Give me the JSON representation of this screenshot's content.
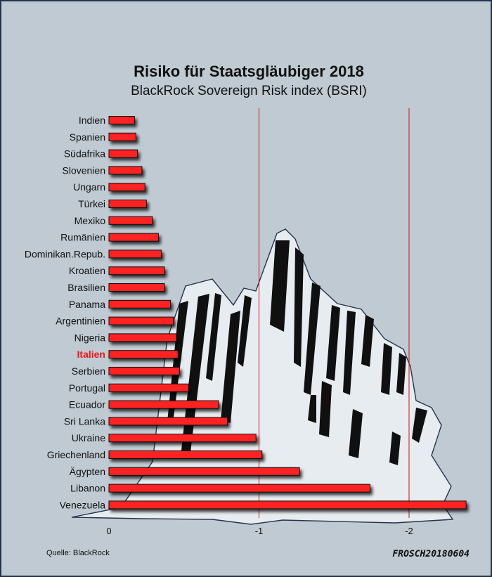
{
  "chart_data": {
    "type": "bar",
    "orientation": "horizontal",
    "title": "Risiko für Staatsgläubiger 2018",
    "subtitle": "BlackRock Sovereign Risk index (BSRI)",
    "xlabel": "",
    "ylabel": "",
    "xlim": [
      0,
      -2.4
    ],
    "xticks": [
      0,
      -1,
      -2
    ],
    "xtick_labels": [
      "0",
      "-1",
      "-2"
    ],
    "grid": "vertical lines at -1 and -2",
    "bar_color": "#ff2020",
    "gridline_color": "#cc1111",
    "highlight_color": "#e81818",
    "highlight": "Italien",
    "categories": [
      "Indien",
      "Spanien",
      "Südafrika",
      "Slovenien",
      "Ungarn",
      "Türkei",
      "Mexiko",
      "Rumänien",
      "Dominikan.Repub.",
      "Kroatien",
      "Brasilien",
      "Panama",
      "Argentinien",
      "Nigeria",
      "Italien",
      "Serbien",
      "Portugal",
      "Ecuador",
      "Sri Lanka",
      "Ukraine",
      "Griechenland",
      "Ägypten",
      "Libanon",
      "Venezuela"
    ],
    "values": [
      -0.17,
      -0.18,
      -0.19,
      -0.22,
      -0.24,
      -0.25,
      -0.29,
      -0.33,
      -0.35,
      -0.37,
      -0.37,
      -0.41,
      -0.43,
      -0.45,
      -0.46,
      -0.47,
      -0.53,
      -0.73,
      -0.79,
      -0.98,
      -1.02,
      -1.27,
      -1.74,
      -2.38
    ]
  },
  "source": "Quelle: BlackRock",
  "signature": "FROSCH20180604"
}
